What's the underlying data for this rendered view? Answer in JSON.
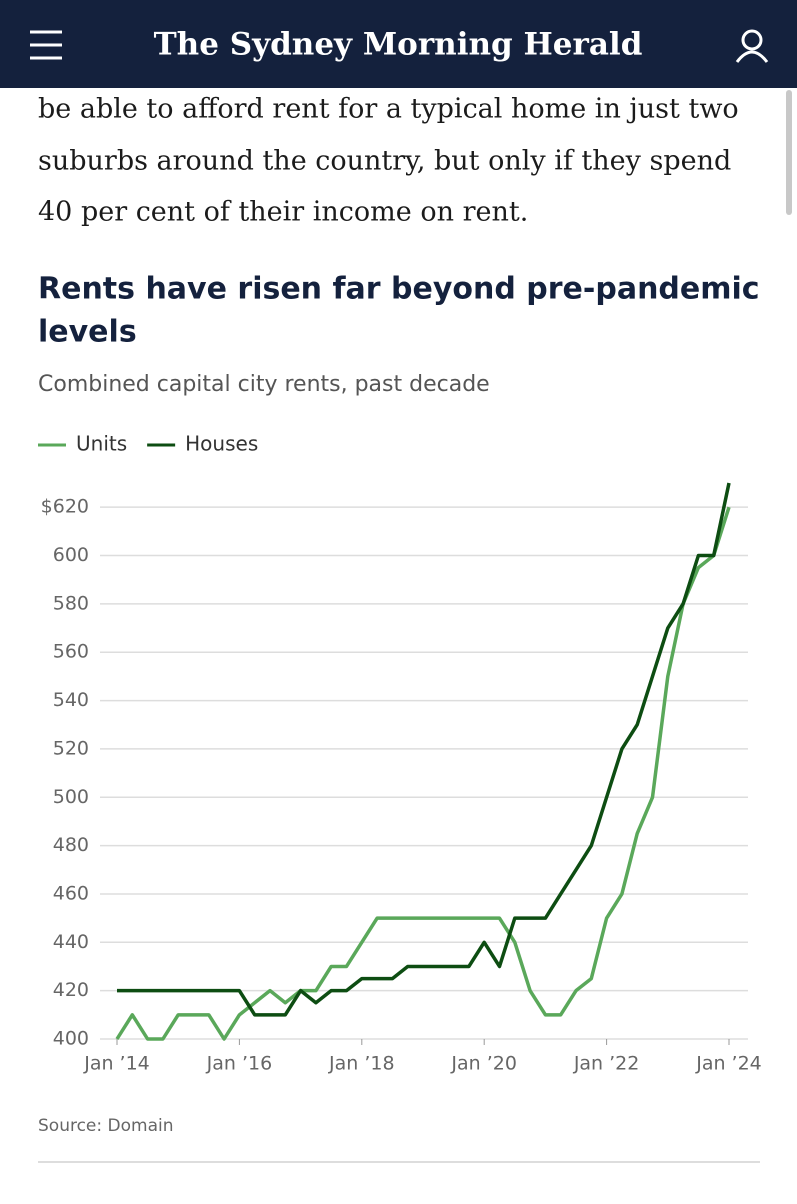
{
  "header": {
    "title": "The Sydney Morning Herald"
  },
  "article": {
    "paragraph_lines": [
      "be able to afford rent for a typical home in just two",
      "suburbs around the country, but only if they spend",
      "40 per cent of their income on rent."
    ]
  },
  "chart_data": {
    "type": "line",
    "title_lines": [
      "Rents have risen far beyond pre-pandemic",
      "levels"
    ],
    "subtitle": "Combined capital city rents, past decade",
    "source": "Source: Domain",
    "x": [
      2014,
      2014.25,
      2014.5,
      2014.75,
      2015,
      2015.25,
      2015.5,
      2015.75,
      2016,
      2016.25,
      2016.5,
      2016.75,
      2017,
      2017.25,
      2017.5,
      2017.75,
      2018,
      2018.25,
      2018.5,
      2018.75,
      2019,
      2019.25,
      2019.5,
      2019.75,
      2020,
      2020.25,
      2020.5,
      2020.75,
      2021,
      2021.25,
      2021.5,
      2021.75,
      2022,
      2022.25,
      2022.5,
      2022.75,
      2023,
      2023.25,
      2023.5,
      2023.75,
      2024
    ],
    "series": [
      {
        "name": "Units",
        "color": "#5aa85a",
        "values": [
          400,
          410,
          400,
          400,
          410,
          410,
          410,
          400,
          410,
          415,
          420,
          415,
          420,
          420,
          430,
          430,
          440,
          450,
          450,
          450,
          450,
          450,
          450,
          450,
          450,
          450,
          440,
          420,
          410,
          410,
          420,
          425,
          450,
          460,
          485,
          500,
          550,
          580,
          595,
          600,
          620
        ]
      },
      {
        "name": "Houses",
        "color": "#0d4d12",
        "values": [
          420,
          420,
          420,
          420,
          420,
          420,
          420,
          420,
          420,
          410,
          410,
          410,
          420,
          415,
          420,
          420,
          425,
          425,
          425,
          430,
          430,
          430,
          430,
          430,
          440,
          430,
          450,
          450,
          450,
          460,
          470,
          480,
          500,
          520,
          530,
          550,
          570,
          580,
          600,
          600,
          630
        ]
      }
    ],
    "xlim": [
      2014,
      2024
    ],
    "xticks": [
      {
        "value": 2014,
        "label": "Jan ’14"
      },
      {
        "value": 2016,
        "label": "Jan ’16"
      },
      {
        "value": 2018,
        "label": "Jan ’18"
      },
      {
        "value": 2020,
        "label": "Jan ’20"
      },
      {
        "value": 2022,
        "label": "Jan ’22"
      },
      {
        "value": 2024,
        "label": "Jan ’24"
      }
    ],
    "ylim": [
      400,
      630
    ],
    "yticks": [
      400,
      420,
      440,
      460,
      480,
      500,
      520,
      540,
      560,
      580,
      600,
      {
        "value": 620,
        "label": "$620"
      }
    ],
    "grid": true
  }
}
